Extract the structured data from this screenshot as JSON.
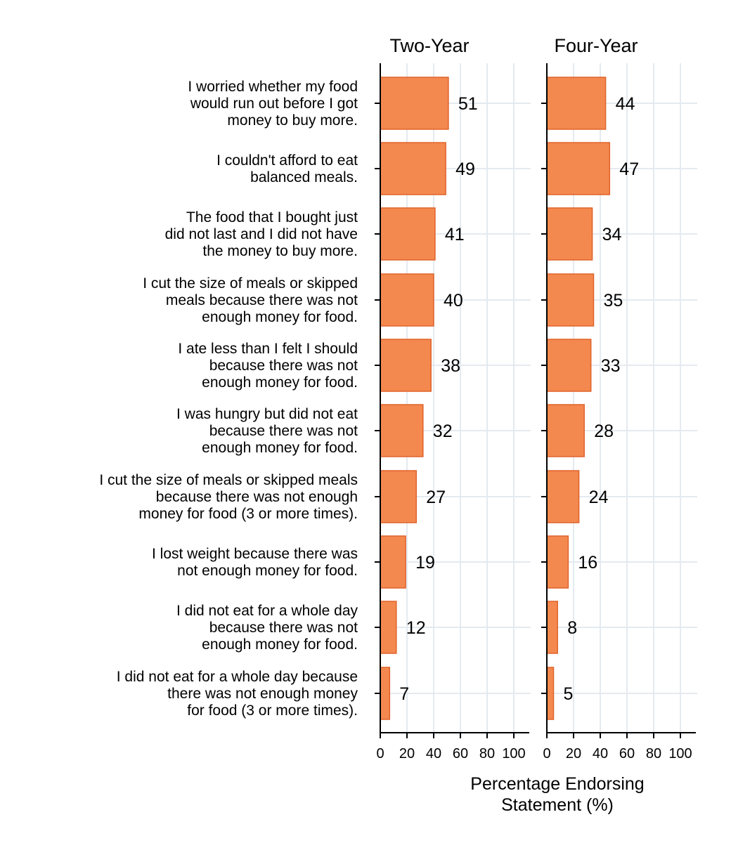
{
  "chart_data": {
    "type": "bar",
    "orientation": "horizontal",
    "categories": [
      [
        "I worried whether my food",
        "would run out before I got",
        "money to buy more."
      ],
      [
        "I couldn't afford to eat",
        "balanced meals."
      ],
      [
        "The food that I bought just",
        "did not last and I did not have",
        "the money to buy more."
      ],
      [
        "I cut the size of meals or skipped",
        "meals because there was not",
        "enough money for food."
      ],
      [
        "I ate less than I felt I should",
        "because there was not",
        "enough money for food."
      ],
      [
        "I was hungry but did not eat",
        "because there was not",
        "enough money for food."
      ],
      [
        "I cut the size of meals or skipped meals",
        "because there was not enough",
        "money for food (3 or more times)."
      ],
      [
        "I lost weight because there was",
        "not enough money for food."
      ],
      [
        "I did not eat for a whole day",
        "because there was not",
        "enough money for food."
      ],
      [
        "I did not eat for a whole day because",
        "there was not enough money",
        "for food (3 or more times)."
      ]
    ],
    "panels": [
      {
        "title": "Two-Year",
        "values": [
          51,
          49,
          41,
          40,
          38,
          32,
          27,
          19,
          12,
          7
        ]
      },
      {
        "title": "Four-Year",
        "values": [
          44,
          47,
          34,
          35,
          33,
          28,
          24,
          16,
          8,
          5
        ]
      }
    ],
    "x_ticks": [
      "0",
      "20",
      "40",
      "60",
      "80",
      "100"
    ],
    "xlim": [
      0,
      100
    ],
    "xlabel": [
      "Percentage Endorsing",
      "Statement (%)"
    ],
    "grid": true,
    "bar_color": "#f4894f",
    "bar_edge_color": "#e0622a",
    "grid_color": "#e4eaf0"
  }
}
